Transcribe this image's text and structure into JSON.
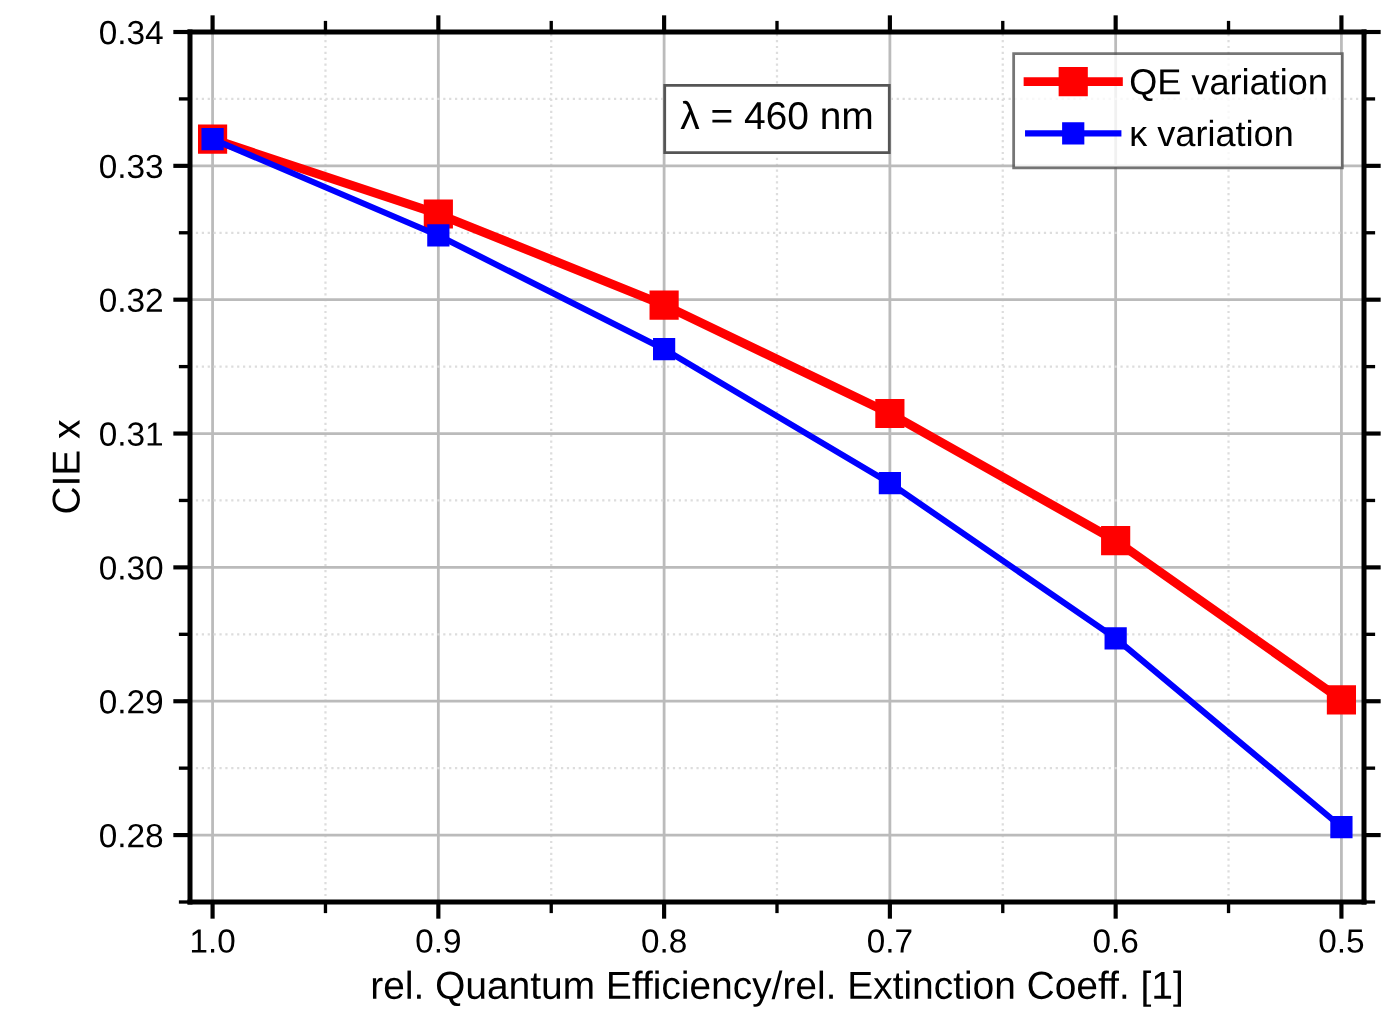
{
  "chart_data": {
    "type": "line",
    "xlabel": "rel. Quantum Efficiency/rel. Extinction Coeff. [1]",
    "ylabel": "CIE x",
    "x": [
      1.0,
      0.9,
      0.8,
      0.7,
      0.6,
      0.5
    ],
    "series": [
      {
        "name": "QE variation",
        "color": "#ff0000",
        "values": [
          0.332,
          0.3264,
          0.3196,
          0.3115,
          0.302,
          0.2901
        ]
      },
      {
        "name": "κ variation",
        "color": "#0000ff",
        "values": [
          0.332,
          0.3248,
          0.3163,
          0.3063,
          0.2947,
          0.2806
        ]
      }
    ],
    "xlim": [
      1.01,
      0.49
    ],
    "ylim": [
      0.275,
      0.34
    ],
    "xticks": [
      {
        "value": 1.0,
        "label": "1.0"
      },
      0.9,
      0.8,
      0.7,
      0.6,
      0.5
    ],
    "yticks": [
      0.28,
      0.29,
      {
        "value": 0.3,
        "label": "0.30"
      },
      0.31,
      0.32,
      0.33,
      0.34
    ],
    "annotations": [
      "λ = 460 nm"
    ],
    "grid": true,
    "legend": "top right",
    "marker": "square",
    "line_style": "solid"
  }
}
